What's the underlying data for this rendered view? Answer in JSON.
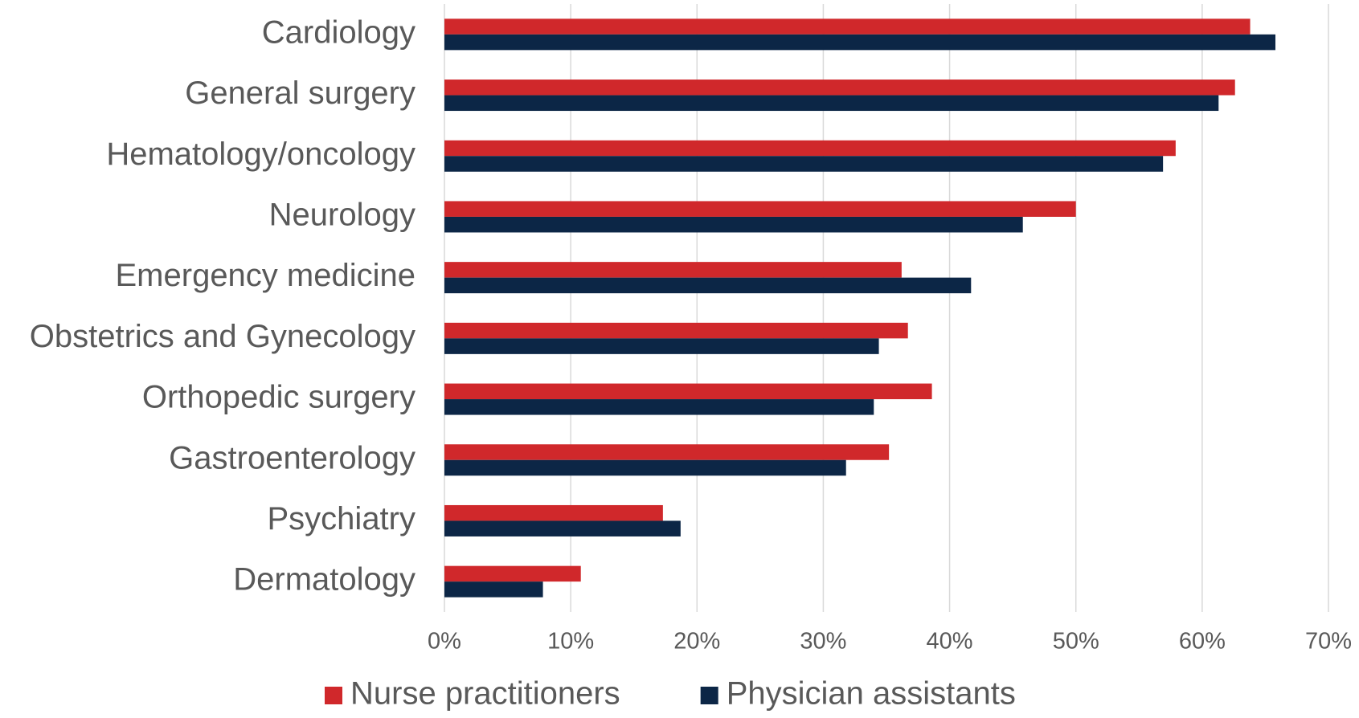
{
  "chart_data": {
    "type": "barh",
    "categories": [
      "Cardiology",
      "General surgery",
      "Hematology/oncology",
      "Neurology",
      "Emergency medicine",
      "Obstetrics and Gynecology",
      "Orthopedic surgery",
      "Gastroenterology",
      "Psychiatry",
      "Dermatology"
    ],
    "series": [
      {
        "name": "Nurse practitioners",
        "color": "#d0282b",
        "values": [
          63.8,
          62.6,
          57.9,
          50.0,
          36.2,
          36.7,
          38.6,
          35.2,
          17.3,
          10.8
        ]
      },
      {
        "name": "Physician assistants",
        "color": "#0c2646",
        "values": [
          65.8,
          61.3,
          56.9,
          45.8,
          41.7,
          34.4,
          34.0,
          31.8,
          18.7,
          7.8
        ]
      }
    ],
    "xlim": [
      0,
      70
    ],
    "xticks": [
      {
        "value": 0,
        "label": "0%"
      },
      {
        "value": 10,
        "label": "10%"
      },
      {
        "value": 20,
        "label": "20%"
      },
      {
        "value": 30,
        "label": "30%"
      },
      {
        "value": 40,
        "label": "40%"
      },
      {
        "value": 50,
        "label": "50%"
      },
      {
        "value": 60,
        "label": "60%"
      },
      {
        "value": 70,
        "label": "70%"
      }
    ],
    "grid": true,
    "legend": "bottom"
  }
}
